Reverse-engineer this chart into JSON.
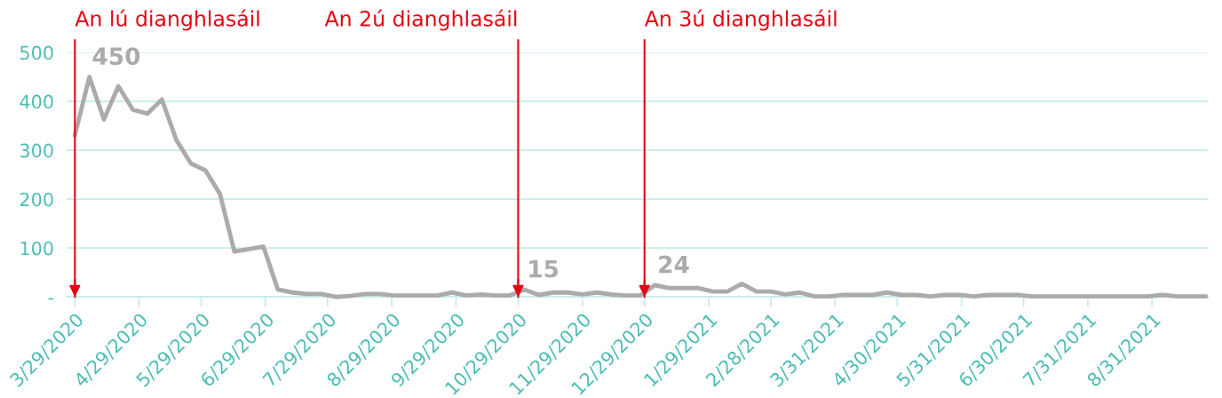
{
  "chart_data": {
    "type": "line",
    "x": [
      "2020-03-29",
      "2020-04-05",
      "2020-04-12",
      "2020-04-19",
      "2020-04-26",
      "2020-05-03",
      "2020-05-10",
      "2020-05-17",
      "2020-05-24",
      "2020-05-31",
      "2020-06-07",
      "2020-06-14",
      "2020-06-21",
      "2020-06-28",
      "2020-07-05",
      "2020-07-12",
      "2020-07-19",
      "2020-07-26",
      "2020-08-02",
      "2020-08-09",
      "2020-08-16",
      "2020-08-23",
      "2020-08-30",
      "2020-09-06",
      "2020-09-13",
      "2020-09-20",
      "2020-09-27",
      "2020-10-04",
      "2020-10-11",
      "2020-10-18",
      "2020-10-25",
      "2020-11-01",
      "2020-11-08",
      "2020-11-15",
      "2020-11-22",
      "2020-11-29",
      "2020-12-06",
      "2020-12-13",
      "2020-12-20",
      "2020-12-27",
      "2021-01-03",
      "2021-01-10",
      "2021-01-17",
      "2021-01-24",
      "2021-01-31",
      "2021-02-07",
      "2021-02-14",
      "2021-02-21",
      "2021-02-28",
      "2021-03-07",
      "2021-03-14",
      "2021-03-21",
      "2021-03-28",
      "2021-04-04",
      "2021-04-11",
      "2021-04-18",
      "2021-04-25",
      "2021-05-02",
      "2021-05-09",
      "2021-05-16",
      "2021-05-23",
      "2021-05-30",
      "2021-06-06",
      "2021-06-13",
      "2021-06-20",
      "2021-06-27",
      "2021-07-04",
      "2021-07-11",
      "2021-07-18",
      "2021-07-25",
      "2021-08-01",
      "2021-08-08",
      "2021-08-15",
      "2021-08-22",
      "2021-08-29",
      "2021-09-05",
      "2021-09-12",
      "2021-09-19",
      "2021-09-26"
    ],
    "series": [
      {
        "color": "#acaaaa",
        "values": [
          331,
          450,
          363,
          431,
          383,
          375,
          404,
          321,
          273,
          259,
          211,
          93,
          98,
          103,
          15,
          9,
          6,
          6,
          0,
          2,
          6,
          6,
          3,
          3,
          3,
          3,
          9,
          3,
          5,
          3,
          3,
          15,
          4,
          9,
          9,
          5,
          9,
          5,
          3,
          3,
          24,
          18,
          18,
          18,
          11,
          11,
          27,
          11,
          11,
          5,
          9,
          1,
          1,
          4,
          4,
          4,
          9,
          4,
          4,
          1,
          4,
          4,
          1,
          4,
          4,
          4,
          1,
          1,
          1,
          1,
          1,
          1,
          1,
          1,
          1,
          4,
          1,
          1,
          1
        ]
      }
    ],
    "xlim": [
      "2020-03-25",
      "2021-09-27"
    ],
    "xticks": [
      {
        "value": "2020-03-29",
        "label": "3/29/2020"
      },
      {
        "value": "2020-04-29",
        "label": "4/29/2020"
      },
      {
        "value": "2020-05-29",
        "label": "5/29/2020"
      },
      {
        "value": "2020-06-29",
        "label": "6/29/2020"
      },
      {
        "value": "2020-07-29",
        "label": "7/29/2020"
      },
      {
        "value": "2020-08-29",
        "label": "8/29/2020"
      },
      {
        "value": "2020-09-29",
        "label": "9/29/2020"
      },
      {
        "value": "2020-10-29",
        "label": "10/29/2020"
      },
      {
        "value": "2020-11-29",
        "label": "11/29/2020"
      },
      {
        "value": "2020-12-29",
        "label": "12/29/2020"
      },
      {
        "value": "2021-01-29",
        "label": "1/29/2021"
      },
      {
        "value": "2021-02-28",
        "label": "2/28/2021"
      },
      {
        "value": "2021-03-31",
        "label": "3/31/2021"
      },
      {
        "value": "2021-04-30",
        "label": "4/30/2021"
      },
      {
        "value": "2021-05-31",
        "label": "5/31/2021"
      },
      {
        "value": "2021-06-30",
        "label": "6/30/2021"
      },
      {
        "value": "2021-07-31",
        "label": "7/31/2021"
      },
      {
        "value": "2021-08-31",
        "label": "8/31/2021"
      }
    ],
    "ylim": [
      0,
      500
    ],
    "yticks": [
      {
        "value": 0,
        "label": "-"
      },
      100,
      200,
      300,
      400,
      500
    ],
    "grid": "y",
    "legend": false,
    "marker": "none",
    "line_style": "solid",
    "ref_lines": [
      {
        "axis": "x",
        "value": "2020-03-29",
        "label": "An lú dianghlasáil",
        "color": "#e30613"
      },
      {
        "axis": "x",
        "value": "2020-10-29",
        "label": "An 2ú dianghlasáil",
        "color": "#e30613"
      },
      {
        "axis": "x",
        "value": "2020-12-29",
        "label": "An 3ú dianghlasáil",
        "color": "#e30613"
      }
    ],
    "annotations": [
      {
        "text": "450",
        "x": "2020-04-05",
        "y": 450
      },
      {
        "text": "15",
        "x": "2020-11-01",
        "y": 15
      },
      {
        "text": "24",
        "x": "2021-01-03",
        "y": 24
      }
    ]
  }
}
